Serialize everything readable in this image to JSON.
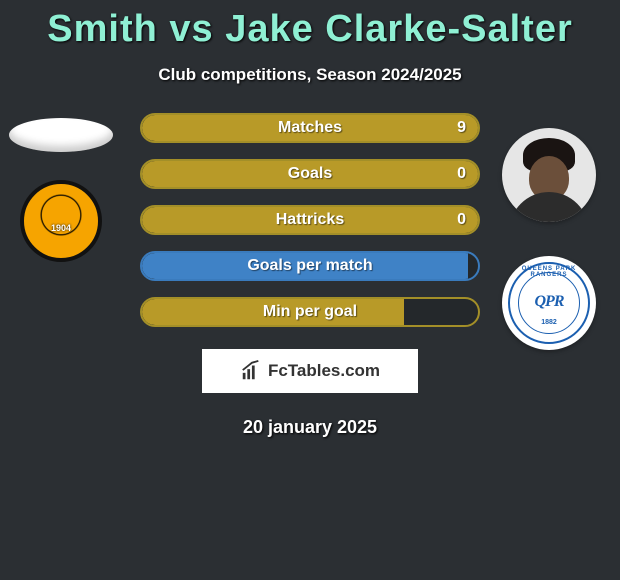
{
  "title": "Smith vs Jake Clarke-Salter",
  "subtitle": "Club competitions, Season 2024/2025",
  "date": "20 january 2025",
  "logo_text": "FcTables.com",
  "colors": {
    "title": "#8ff0d4",
    "gold_border": "#a38f28",
    "gold_fill": "#b89a28",
    "blue_border": "#3a7bbd",
    "blue_fill": "#3f82c6",
    "background": "#2b2f33",
    "qpr_blue": "#1b5fb0",
    "hull_orange": "#f6a400"
  },
  "left_club_year": "1904",
  "right_club_est": "1882",
  "right_club_arc": "QUEENS PARK RANGERS",
  "right_club_script": "QPR",
  "stats": [
    {
      "label": "Matches",
      "value": "9",
      "theme": "gold",
      "fill_pct": 100
    },
    {
      "label": "Goals",
      "value": "0",
      "theme": "gold",
      "fill_pct": 100
    },
    {
      "label": "Hattricks",
      "value": "0",
      "theme": "gold",
      "fill_pct": 100
    },
    {
      "label": "Goals per match",
      "value": "",
      "theme": "blue",
      "fill_pct": 97
    },
    {
      "label": "Min per goal",
      "value": "",
      "theme": "gold",
      "fill_pct": 78
    }
  ]
}
